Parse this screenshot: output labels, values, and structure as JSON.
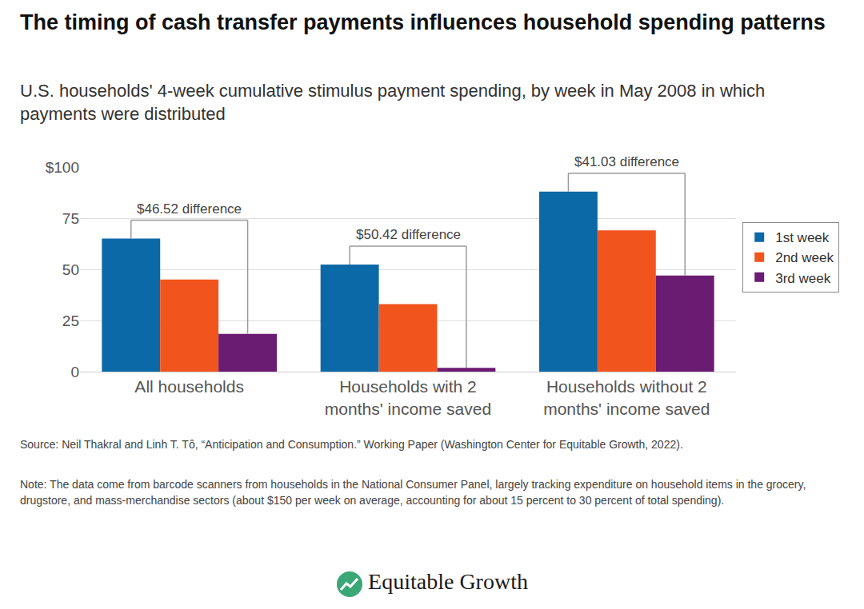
{
  "chart_data": {
    "type": "bar",
    "title": "The timing of cash transfer payments influences household spending patterns",
    "subtitle": "U.S. households' 4-week cumulative stimulus payment spending, by week in May 2008 in which payments were distributed",
    "categories": [
      "All households",
      "Households with 2 months' income saved",
      "Households without 2 months' income saved"
    ],
    "series": [
      {
        "name": "1st week",
        "color": "#0b69a7",
        "values": [
          65.0,
          52.3,
          88.0
        ]
      },
      {
        "name": "2nd week",
        "color": "#f2541d",
        "values": [
          45.0,
          33.0,
          69.0
        ]
      },
      {
        "name": "3rd week",
        "color": "#6a1b72",
        "values": [
          18.5,
          1.9,
          47.0
        ]
      }
    ],
    "ylim": [
      0,
      100
    ],
    "yticks": [
      0,
      25,
      50,
      75,
      {
        "value": 100,
        "label": "$100"
      }
    ],
    "grid": true,
    "legend": "right",
    "annotations": [
      {
        "category": "All households",
        "text": "$46.52 difference"
      },
      {
        "category": "Households with 2 months' income saved",
        "text": "$50.42 difference"
      },
      {
        "category": "Households without 2 months' income saved",
        "text": "$41.03 difference"
      }
    ],
    "source": "Source: Neil Thakral and Linh T. Tô, “Anticipation and Consumption.” Working Paper (Washington Center for Equitable Growth, 2022).",
    "note": "Note: The data come from barcode scanners from households in the National Consumer Panel, largely tracking expenditure on household items in the grocery, drugstore, and mass-merchandise sectors (about $150 per week on average, accounting for about 15 percent to 30 percent of total spending).",
    "logo": "Equitable Growth"
  }
}
